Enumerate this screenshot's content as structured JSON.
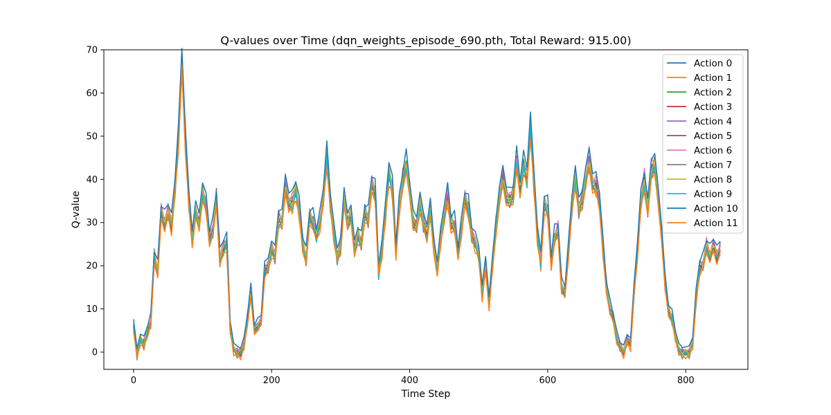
{
  "chart_data": {
    "type": "line",
    "title": "Q-values over Time (dqn_weights_episode_690.pth, Total Reward: 915.00)",
    "xlabel": "Time Step",
    "ylabel": "Q-value",
    "xlim": [
      -43,
      890
    ],
    "ylim": [
      -4,
      70
    ],
    "xticks": [
      0,
      200,
      400,
      600,
      800
    ],
    "yticks": [
      0,
      10,
      20,
      30,
      40,
      50,
      60,
      70
    ],
    "grid": false,
    "legend_position": "top-right",
    "x": {
      "start": 0,
      "end": 850,
      "step": 5
    },
    "base_curve_keypoints": [
      [
        0,
        6
      ],
      [
        4,
        -0.5
      ],
      [
        8,
        0.5
      ],
      [
        12,
        5.5
      ],
      [
        16,
        1
      ],
      [
        20,
        5
      ],
      [
        24,
        8
      ],
      [
        26,
        6
      ],
      [
        28,
        31
      ],
      [
        32,
        14
      ],
      [
        36,
        20
      ],
      [
        40,
        33
      ],
      [
        44,
        28
      ],
      [
        48,
        35
      ],
      [
        52,
        31
      ],
      [
        56,
        29
      ],
      [
        60,
        38
      ],
      [
        64,
        45
      ],
      [
        67,
        60
      ],
      [
        70,
        67
      ],
      [
        73,
        60
      ],
      [
        76,
        45
      ],
      [
        80,
        35
      ],
      [
        84,
        25
      ],
      [
        88,
        31
      ],
      [
        92,
        34
      ],
      [
        96,
        29
      ],
      [
        100,
        37
      ],
      [
        104,
        35
      ],
      [
        108,
        32
      ],
      [
        112,
        21
      ],
      [
        116,
        31
      ],
      [
        120,
        36
      ],
      [
        124,
        22
      ],
      [
        128,
        20
      ],
      [
        132,
        29
      ],
      [
        136,
        24
      ],
      [
        140,
        6
      ],
      [
        144,
        1
      ],
      [
        150,
        0
      ],
      [
        158,
        0
      ],
      [
        164,
        5
      ],
      [
        168,
        17
      ],
      [
        172,
        10
      ],
      [
        176,
        4
      ],
      [
        180,
        6
      ],
      [
        184,
        5
      ],
      [
        188,
        15
      ],
      [
        192,
        23
      ],
      [
        196,
        19
      ],
      [
        200,
        24
      ],
      [
        204,
        20
      ],
      [
        208,
        30
      ],
      [
        212,
        32
      ],
      [
        216,
        30
      ],
      [
        220,
        39
      ],
      [
        224,
        35
      ],
      [
        228,
        33
      ],
      [
        232,
        37
      ],
      [
        236,
        38
      ],
      [
        240,
        33
      ],
      [
        244,
        28
      ],
      [
        248,
        18
      ],
      [
        252,
        25
      ],
      [
        256,
        34
      ],
      [
        260,
        30
      ],
      [
        264,
        26
      ],
      [
        268,
        32
      ],
      [
        272,
        28
      ],
      [
        276,
        39
      ],
      [
        280,
        46
      ],
      [
        284,
        36
      ],
      [
        288,
        30
      ],
      [
        292,
        27
      ],
      [
        296,
        20
      ],
      [
        300,
        25
      ],
      [
        304,
        37
      ],
      [
        308,
        30
      ],
      [
        312,
        31
      ],
      [
        316,
        32
      ],
      [
        320,
        24
      ],
      [
        324,
        29
      ],
      [
        328,
        21
      ],
      [
        332,
        30
      ],
      [
        336,
        33
      ],
      [
        340,
        31
      ],
      [
        344,
        37
      ],
      [
        348,
        46
      ],
      [
        352,
        28
      ],
      [
        356,
        16
      ],
      [
        360,
        24
      ],
      [
        364,
        31
      ],
      [
        368,
        38
      ],
      [
        372,
        46
      ],
      [
        376,
        35
      ],
      [
        380,
        24
      ],
      [
        384,
        30
      ],
      [
        388,
        43
      ],
      [
        392,
        38
      ],
      [
        396,
        45
      ],
      [
        400,
        38
      ],
      [
        404,
        30
      ],
      [
        408,
        31
      ],
      [
        412,
        28
      ],
      [
        416,
        37
      ],
      [
        420,
        30
      ],
      [
        424,
        26
      ],
      [
        428,
        33
      ],
      [
        432,
        33
      ],
      [
        436,
        22
      ],
      [
        440,
        19
      ],
      [
        444,
        25
      ],
      [
        448,
        33
      ],
      [
        452,
        31
      ],
      [
        456,
        38
      ],
      [
        460,
        30
      ],
      [
        464,
        31
      ],
      [
        468,
        25
      ],
      [
        472,
        22
      ],
      [
        476,
        30
      ],
      [
        480,
        36
      ],
      [
        484,
        33
      ],
      [
        488,
        34
      ],
      [
        492,
        21
      ],
      [
        496,
        27
      ],
      [
        500,
        23
      ],
      [
        504,
        13
      ],
      [
        508,
        17
      ],
      [
        512,
        23
      ],
      [
        516,
        8
      ],
      [
        520,
        20
      ],
      [
        524,
        28
      ],
      [
        528,
        33
      ],
      [
        532,
        38
      ],
      [
        536,
        42
      ],
      [
        540,
        36
      ],
      [
        544,
        34
      ],
      [
        548,
        40
      ],
      [
        552,
        33
      ],
      [
        556,
        48
      ],
      [
        560,
        38
      ],
      [
        564,
        45
      ],
      [
        568,
        38
      ],
      [
        572,
        44
      ],
      [
        576,
        55
      ],
      [
        580,
        40
      ],
      [
        584,
        32
      ],
      [
        588,
        14
      ],
      [
        592,
        28
      ],
      [
        596,
        37
      ],
      [
        600,
        33
      ],
      [
        604,
        20
      ],
      [
        608,
        25
      ],
      [
        612,
        28
      ],
      [
        616,
        29
      ],
      [
        620,
        15
      ],
      [
        624,
        12
      ],
      [
        628,
        20
      ],
      [
        632,
        27
      ],
      [
        636,
        36
      ],
      [
        640,
        41
      ],
      [
        644,
        32
      ],
      [
        648,
        37
      ],
      [
        652,
        34
      ],
      [
        656,
        42
      ],
      [
        660,
        45
      ],
      [
        664,
        36
      ],
      [
        668,
        48
      ],
      [
        672,
        30
      ],
      [
        676,
        37
      ],
      [
        680,
        24
      ],
      [
        684,
        18
      ],
      [
        688,
        8
      ],
      [
        692,
        12
      ],
      [
        696,
        7
      ],
      [
        700,
        3
      ],
      [
        704,
        2
      ],
      [
        708,
        0
      ],
      [
        712,
        0
      ],
      [
        716,
        4
      ],
      [
        720,
        2
      ],
      [
        724,
        12
      ],
      [
        728,
        20
      ],
      [
        732,
        28
      ],
      [
        736,
        37
      ],
      [
        740,
        40
      ],
      [
        744,
        31
      ],
      [
        748,
        38
      ],
      [
        752,
        47
      ],
      [
        756,
        42
      ],
      [
        760,
        36
      ],
      [
        764,
        30
      ],
      [
        768,
        20
      ],
      [
        772,
        12
      ],
      [
        776,
        9
      ],
      [
        780,
        8
      ],
      [
        784,
        5
      ],
      [
        788,
        1
      ],
      [
        792,
        0
      ],
      [
        800,
        0
      ],
      [
        808,
        0
      ],
      [
        812,
        5
      ],
      [
        816,
        15
      ],
      [
        820,
        20
      ],
      [
        824,
        18
      ],
      [
        828,
        27
      ],
      [
        832,
        23
      ],
      [
        836,
        22
      ],
      [
        840,
        25
      ],
      [
        844,
        22
      ],
      [
        850,
        24
      ]
    ],
    "series": [
      {
        "name": "Action 0",
        "color": "#1f77b4",
        "offset": 0.3,
        "phase": 0.0
      },
      {
        "name": "Action 1",
        "color": "#ff7f0e",
        "offset": -0.8,
        "phase": 0.9
      },
      {
        "name": "Action 2",
        "color": "#2ca02c",
        "offset": 0.0,
        "phase": 1.7
      },
      {
        "name": "Action 3",
        "color": "#d62728",
        "offset": -0.3,
        "phase": 2.5
      },
      {
        "name": "Action 4",
        "color": "#9467bd",
        "offset": 0.2,
        "phase": 3.3
      },
      {
        "name": "Action 5",
        "color": "#8c564b",
        "offset": -0.2,
        "phase": 4.1
      },
      {
        "name": "Action 6",
        "color": "#e377c2",
        "offset": 0.5,
        "phase": 4.9
      },
      {
        "name": "Action 7",
        "color": "#7f7f7f",
        "offset": -0.5,
        "phase": 5.7
      },
      {
        "name": "Action 8",
        "color": "#bcbd22",
        "offset": 0.1,
        "phase": 0.4
      },
      {
        "name": "Action 9",
        "color": "#17becf",
        "offset": -0.6,
        "phase": 1.3
      },
      {
        "name": "Action 10",
        "color": "#1f77b4",
        "offset": 1.2,
        "phase": 2.1
      },
      {
        "name": "Action 11",
        "color": "#ff7f0e",
        "offset": -1.0,
        "phase": 3.0
      }
    ]
  }
}
